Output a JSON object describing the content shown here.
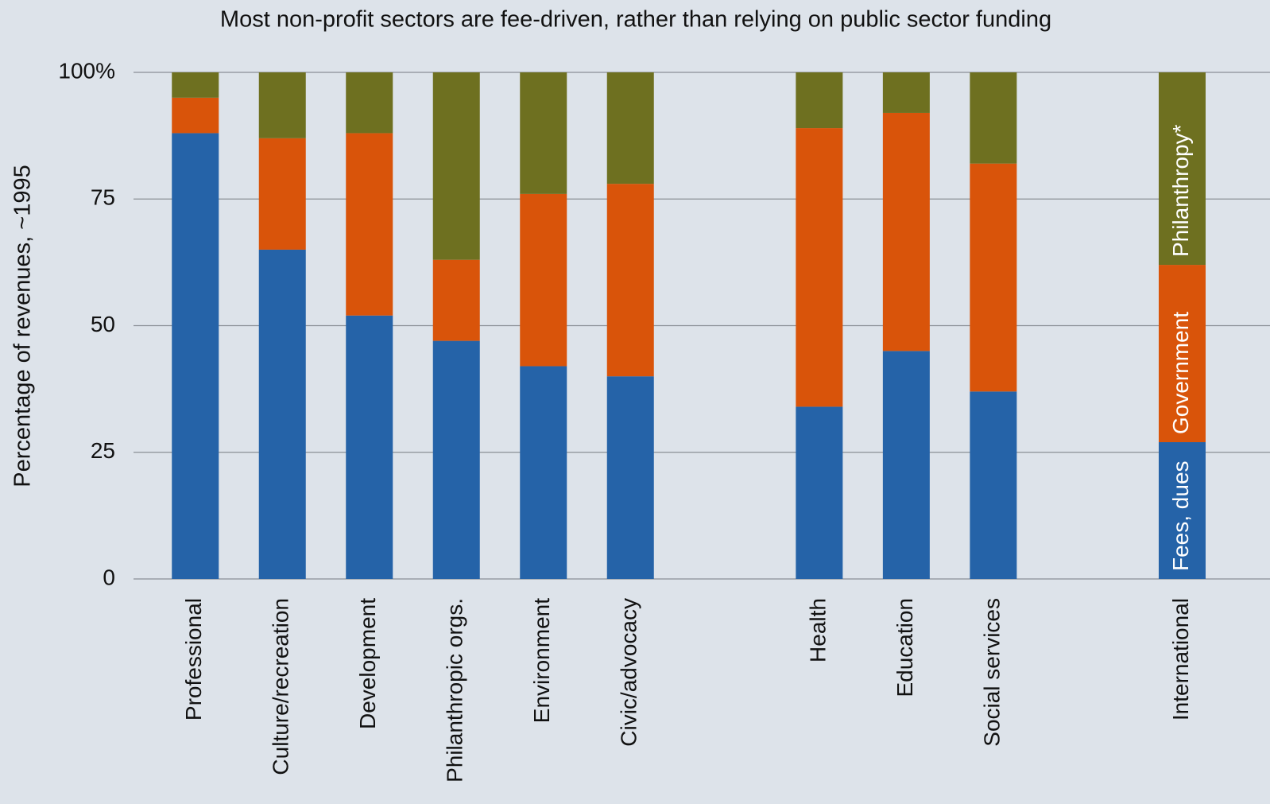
{
  "chart_data": {
    "type": "stacked_bar",
    "title": "Most non-profit sectors are fee-driven, rather than relying on public sector funding",
    "y_label": "Percentage of revenues, ~1995",
    "categories": [
      "Professional",
      "Culture/recreation",
      "Development",
      "Philanthropic orgs.",
      "Environment",
      "Civic/advocacy",
      null,
      "Health",
      "Education",
      "Social services",
      null,
      "International"
    ],
    "series": [
      {
        "name": "Fees, dues",
        "color": "#2563a8",
        "values": [
          88,
          65,
          52,
          47,
          42,
          40,
          null,
          34,
          45,
          37,
          null,
          27
        ]
      },
      {
        "name": "Government",
        "color": "#d9540a",
        "values": [
          7,
          22,
          36,
          16,
          34,
          38,
          null,
          55,
          47,
          45,
          null,
          35
        ]
      },
      {
        "name": "Philanthropy*",
        "color": "#6e7020",
        "values": [
          5,
          13,
          12,
          37,
          24,
          22,
          null,
          11,
          8,
          18,
          null,
          38
        ]
      }
    ],
    "ylim": [
      0,
      100
    ],
    "yticks": [
      0,
      25,
      50,
      75,
      {
        "value": 100,
        "label": "100%"
      }
    ],
    "grid": true
  }
}
